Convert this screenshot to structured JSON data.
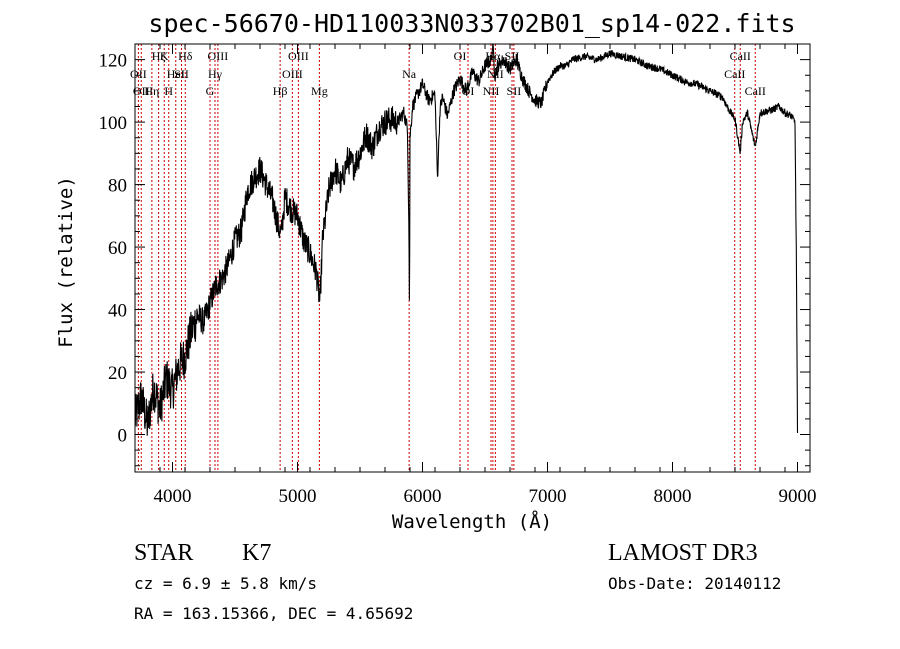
{
  "chart_data": {
    "type": "line",
    "title": "spec-56670-HD110033N033702B01_sp14-022.fits",
    "xlabel": "Wavelength (Å)",
    "ylabel": "Flux (relative)",
    "xlim": [
      3700,
      9100
    ],
    "ylim": [
      -12,
      125
    ],
    "x_ticks": [
      4000,
      5000,
      6000,
      7000,
      8000,
      9000
    ],
    "y_ticks": [
      0,
      20,
      40,
      60,
      80,
      100,
      120
    ],
    "grid": false,
    "series": [
      {
        "x": [
          3700,
          3750,
          3800,
          3850,
          3900,
          3950,
          4000,
          4050,
          4100,
          4150,
          4200,
          4250,
          4300,
          4350,
          4400,
          4450,
          4500,
          4550,
          4600,
          4650,
          4700,
          4750,
          4800,
          4850,
          4870,
          4900,
          4950,
          5000,
          5050,
          5100,
          5150,
          5180,
          5200,
          5250,
          5300,
          5350,
          5400,
          5450,
          5500,
          5550,
          5600,
          5650,
          5700,
          5750,
          5800,
          5850,
          5880,
          5890,
          5896,
          5900,
          5920,
          5950,
          6000,
          6050,
          6100,
          6120,
          6140,
          6160,
          6200,
          6250,
          6300,
          6350,
          6400,
          6450,
          6500,
          6550,
          6563,
          6580,
          6600,
          6650,
          6700,
          6750,
          6800,
          6850,
          6900,
          6950,
          7000,
          7050,
          7100,
          7150,
          7200,
          7300,
          7400,
          7500,
          7600,
          7700,
          7800,
          7900,
          8000,
          8100,
          8200,
          8300,
          8400,
          8450,
          8500,
          8542,
          8560,
          8600,
          8662,
          8700,
          8800,
          8850,
          8900,
          8950,
          8980,
          8990,
          9000
        ],
        "y": [
          5,
          12,
          3,
          15,
          8,
          18,
          14,
          22,
          25,
          33,
          38,
          36,
          42,
          48,
          50,
          55,
          62,
          65,
          78,
          82,
          85,
          80,
          75,
          66,
          64,
          76,
          72,
          70,
          62,
          58,
          52,
          42,
          62,
          78,
          85,
          80,
          88,
          86,
          90,
          96,
          92,
          98,
          100,
          101,
          100,
          103,
          98,
          70,
          38,
          95,
          105,
          108,
          112,
          107,
          109,
          82,
          104,
          108,
          102,
          110,
          114,
          110,
          116,
          113,
          118,
          120,
          125,
          115,
          118,
          120,
          117,
          120,
          114,
          110,
          107,
          106,
          113,
          116,
          118,
          118,
          120,
          121,
          120,
          122,
          121,
          120,
          118,
          117,
          115,
          113,
          112,
          110,
          108,
          104,
          101,
          90,
          100,
          103,
          92,
          103,
          104,
          105,
          103,
          102,
          100,
          60,
          0
        ]
      }
    ],
    "line_markers": [
      {
        "wavelength": 3727,
        "label": "OII",
        "row": 2
      },
      {
        "wavelength": 3750,
        "label": "OII",
        "row": 3
      },
      {
        "wavelength": 3835,
        "label": "Hη",
        "row": 3
      },
      {
        "wavelength": 3889,
        "label": "Hζ",
        "row": 1
      },
      {
        "wavelength": 3934,
        "label": "K",
        "row": 1
      },
      {
        "wavelength": 3970,
        "label": "H",
        "row": 3
      },
      {
        "wavelength": 4026,
        "label": "HeI",
        "row": 2
      },
      {
        "wavelength": 4072,
        "label": "SII",
        "row": 2
      },
      {
        "wavelength": 4102,
        "label": "Hδ",
        "row": 1
      },
      {
        "wavelength": 4300,
        "label": "G",
        "row": 3
      },
      {
        "wavelength": 4340,
        "label": "Hγ",
        "row": 2
      },
      {
        "wavelength": 4363,
        "label": "OIII",
        "row": 1
      },
      {
        "wavelength": 4861,
        "label": "Hβ",
        "row": 3
      },
      {
        "wavelength": 4959,
        "label": "OIII",
        "row": 2
      },
      {
        "wavelength": 5007,
        "label": "OIII",
        "row": 1
      },
      {
        "wavelength": 5175,
        "label": "Mg",
        "row": 3
      },
      {
        "wavelength": 5893,
        "label": "Na",
        "row": 2
      },
      {
        "wavelength": 6300,
        "label": "OI",
        "row": 1
      },
      {
        "wavelength": 6364,
        "label": "OI",
        "row": 3
      },
      {
        "wavelength": 6548,
        "label": "NII",
        "row": 3
      },
      {
        "wavelength": 6563,
        "label": "Hα",
        "row": 1
      },
      {
        "wavelength": 6583,
        "label": "NII",
        "row": 2
      },
      {
        "wavelength": 6716,
        "label": "SII",
        "row": 1
      },
      {
        "wavelength": 6731,
        "label": "SII",
        "row": 3
      },
      {
        "wavelength": 8498,
        "label": "CaII",
        "row": 2
      },
      {
        "wavelength": 8542,
        "label": "CaII",
        "row": 1
      },
      {
        "wavelength": 8662,
        "label": "CaII",
        "row": 3
      }
    ]
  },
  "info": {
    "class_label": "STAR",
    "subclass": "K7",
    "survey": "LAMOST DR3",
    "cz_line": "cz = 6.9 ± 5.8 km/s",
    "obs_date": "Obs-Date: 20140112",
    "coords_line": "RA = 163.15366, DEC =    4.65692"
  },
  "colors": {
    "spectrum": "#000000",
    "marker_line": "#cc0000",
    "text": "#000000"
  }
}
